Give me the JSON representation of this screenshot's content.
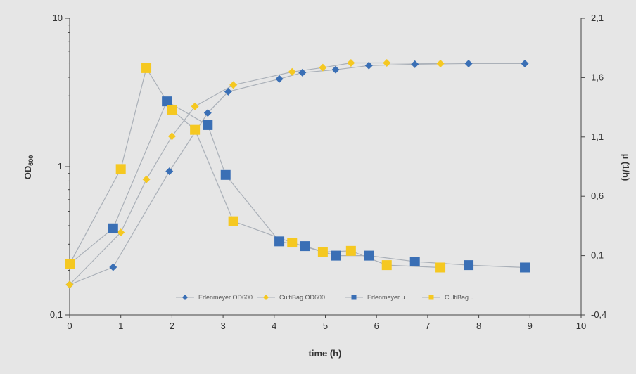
{
  "chart_data": {
    "type": "line",
    "title": "",
    "xlabel": "time (h)",
    "ylabel_left": "OD",
    "ylabel_left_sub": "600",
    "ylabel_right": "µ (1/h)",
    "xlim": [
      0,
      10
    ],
    "ylim_left": [
      0.1,
      10
    ],
    "ylim_right": [
      -0.4,
      2.1
    ],
    "y_left_scale": "log",
    "x_ticks": [
      "0",
      "1",
      "2",
      "3",
      "4",
      "5",
      "6",
      "7",
      "8",
      "9",
      "10"
    ],
    "y_left_ticks": [
      {
        "value": 0.1,
        "label": "0,1"
      },
      {
        "value": 1,
        "label": "1"
      },
      {
        "value": 10,
        "label": "10"
      }
    ],
    "y_right_ticks": [
      {
        "value": -0.4,
        "label": "-0,4"
      },
      {
        "value": 0.1,
        "label": "0,1"
      },
      {
        "value": 0.6,
        "label": "0,6"
      },
      {
        "value": 1.1,
        "label": "1,1"
      },
      {
        "value": 1.6,
        "label": "1,6"
      },
      {
        "value": 2.1,
        "label": "2,1"
      }
    ],
    "grid": false,
    "legend_position": "bottom-inside",
    "colors": {
      "blue": "#3a6fb5",
      "yellow": "#f5c821",
      "line": "#aab0b8",
      "plot_bg": "#e6e6e6",
      "page_bg": "#ffffff"
    },
    "series": [
      {
        "name": "Erlenmeyer OD600",
        "axis": "left",
        "marker": "diamond",
        "color": "#3a6fb5",
        "x": [
          0,
          0.85,
          1.95,
          2.7,
          3.1,
          4.1,
          4.55,
          5.2,
          5.85,
          6.75,
          7.8,
          8.9
        ],
        "y": [
          0.16,
          0.21,
          0.93,
          2.3,
          3.2,
          3.9,
          4.3,
          4.5,
          4.8,
          4.9,
          4.95,
          4.95
        ]
      },
      {
        "name": "CultiBag OD600",
        "axis": "left",
        "marker": "diamond",
        "color": "#f5c821",
        "x": [
          0,
          1,
          1.5,
          2,
          2.45,
          3.2,
          4.35,
          4.95,
          5.5,
          6.2,
          7.25
        ],
        "y": [
          0.16,
          0.36,
          0.82,
          1.6,
          2.55,
          3.55,
          4.35,
          4.65,
          5.0,
          5.0,
          4.95
        ]
      },
      {
        "name": "Erlenmeyer µ",
        "axis": "right",
        "marker": "square",
        "color": "#3a6fb5",
        "x": [
          0,
          0.85,
          1.9,
          2.7,
          3.05,
          4.1,
          4.6,
          5.2,
          5.85,
          6.75,
          7.8,
          8.9
        ],
        "y": [
          0.03,
          0.33,
          1.4,
          1.2,
          0.78,
          0.22,
          0.18,
          0.1,
          0.1,
          0.05,
          0.02,
          0.0
        ]
      },
      {
        "name": "CultiBag µ",
        "axis": "right",
        "marker": "square",
        "color": "#f5c821",
        "x": [
          0,
          1.0,
          1.5,
          2.0,
          2.45,
          3.2,
          4.35,
          4.95,
          5.5,
          6.2,
          7.25
        ],
        "y": [
          0.03,
          0.83,
          1.68,
          1.33,
          1.16,
          0.39,
          0.21,
          0.13,
          0.14,
          0.02,
          0.0
        ]
      }
    ]
  }
}
